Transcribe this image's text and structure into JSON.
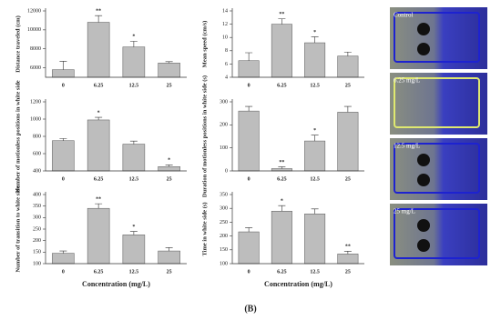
{
  "chart_data": [
    {
      "type": "bar",
      "ylabel": "Distance traveled (cm)",
      "categories": [
        "0",
        "6.25",
        "12.5",
        "25"
      ],
      "values": [
        5800,
        10800,
        8200,
        6500
      ],
      "errors": [
        900,
        700,
        600,
        150
      ],
      "ylim": [
        5000,
        12000
      ],
      "yticks": [
        6000,
        8000,
        10000,
        12000
      ],
      "color": "#bdbdbd",
      "annotations": [
        {
          "index": 1,
          "text": "**"
        },
        {
          "index": 2,
          "text": "*"
        }
      ]
    },
    {
      "type": "bar",
      "ylabel": "Mean speed (cm/s)",
      "categories": [
        "0",
        "6.25",
        "12.5",
        "25"
      ],
      "values": [
        6.5,
        12,
        9.2,
        7.2
      ],
      "errors": [
        1.2,
        0.8,
        0.9,
        0.6
      ],
      "ylim": [
        4,
        14
      ],
      "yticks": [
        4,
        6,
        8,
        10,
        12,
        14
      ],
      "color": "#bdbdbd",
      "annotations": [
        {
          "index": 1,
          "text": "**"
        },
        {
          "index": 2,
          "text": "*"
        }
      ]
    },
    {
      "type": "bar",
      "ylabel": "Number of motionless positions in white side",
      "categories": [
        "0",
        "6.25",
        "12.5",
        "25"
      ],
      "values": [
        750,
        990,
        710,
        450
      ],
      "errors": [
        25,
        30,
        35,
        20
      ],
      "ylim": [
        400,
        1200
      ],
      "yticks": [
        400,
        600,
        800,
        1000,
        1200
      ],
      "color": "#bdbdbd",
      "annotations": [
        {
          "index": 1,
          "text": "*"
        },
        {
          "index": 3,
          "text": "*"
        }
      ]
    },
    {
      "type": "bar",
      "ylabel": "Duration of motionless positions in white side (s)",
      "categories": [
        "0",
        "6.25",
        "12.5",
        "25"
      ],
      "values": [
        260,
        10,
        130,
        255
      ],
      "errors": [
        20,
        8,
        25,
        25
      ],
      "ylim": [
        0,
        300
      ],
      "yticks": [
        0,
        100,
        200,
        300
      ],
      "color": "#bdbdbd",
      "annotations": [
        {
          "index": 1,
          "text": "**"
        },
        {
          "index": 2,
          "text": "*"
        }
      ]
    },
    {
      "type": "bar",
      "ylabel": "Number of transition to white side",
      "xlabel": "Concentration (mg/L)",
      "categories": [
        "0",
        "6.25",
        "12.5",
        "25"
      ],
      "values": [
        145,
        340,
        225,
        155
      ],
      "errors": [
        10,
        20,
        15,
        15
      ],
      "ylim": [
        100,
        400
      ],
      "yticks": [
        100,
        150,
        200,
        250,
        300,
        350,
        400
      ],
      "color": "#bdbdbd",
      "annotations": [
        {
          "index": 1,
          "text": "**"
        },
        {
          "index": 2,
          "text": "*"
        }
      ]
    },
    {
      "type": "bar",
      "ylabel": "Time in white side (s)",
      "xlabel": "Concentration (mg/L)",
      "categories": [
        "0",
        "6.25",
        "12.5",
        "25"
      ],
      "values": [
        215,
        290,
        280,
        135
      ],
      "errors": [
        15,
        20,
        18,
        10
      ],
      "ylim": [
        100,
        350
      ],
      "yticks": [
        100,
        150,
        200,
        250,
        300,
        350
      ],
      "color": "#bdbdbd",
      "annotations": [
        {
          "index": 1,
          "text": "*"
        },
        {
          "index": 3,
          "text": "**"
        }
      ]
    }
  ],
  "image_labels": [
    "Control",
    "6.25 mg/L",
    "12.5 mg/L",
    "25 mg/L"
  ],
  "caption": "(B)"
}
